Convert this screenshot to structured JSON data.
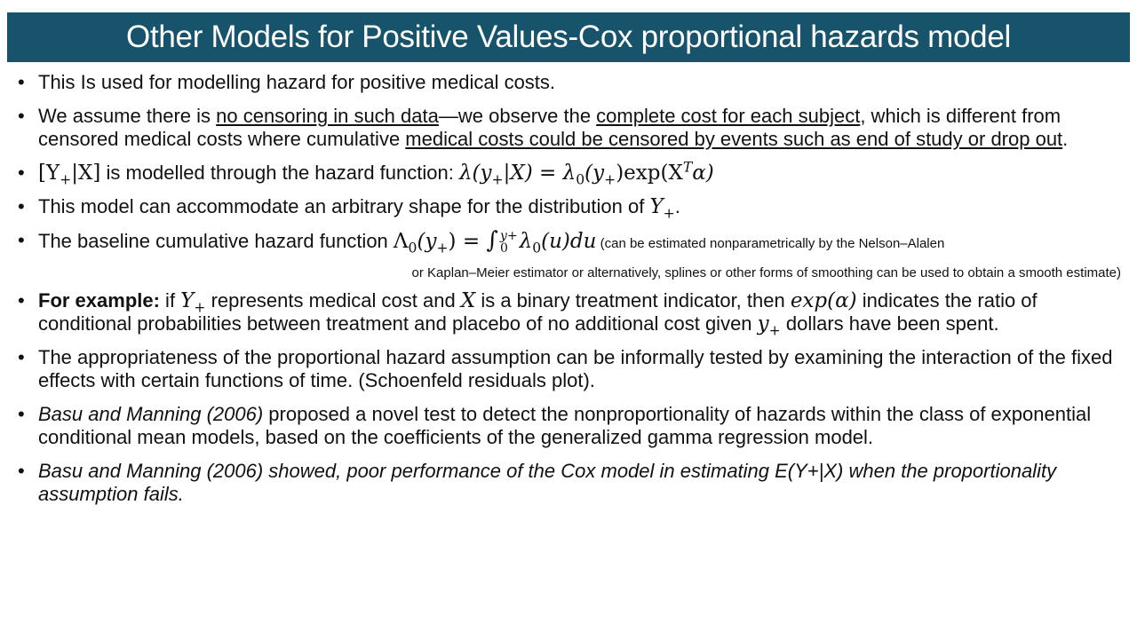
{
  "title": "Other Models for Positive Values-Cox proportional hazards model",
  "b1": "This Is used for modelling hazard for positive medical costs.",
  "b2": {
    "t1": "We assume there is ",
    "u1": "no censoring in such data",
    "t2": "—we observe the ",
    "u2": "complete cost for each subject",
    "t3": ", which is different from censored medical costs where cumulative ",
    "u3": "medical costs could be censored by events such as end of study or drop out",
    "t4": "."
  },
  "b3": {
    "m1": "[Y",
    "m1s": "+",
    "m2": "|X]",
    "t1": " is modelled through the hazard function: ",
    "m3": "λ(y",
    "m3s": "+",
    "m4": "|X) = λ",
    "m4s": "0",
    "m5": "(y",
    "m5s": "+",
    "m6": ")exp(X",
    "m6p": "T",
    "m7": "α)"
  },
  "b4": {
    "t1": "This model can accommodate an arbitrary shape for the distribution of ",
    "m1": "Y",
    "m1s": "+",
    "t2": "."
  },
  "b5": {
    "t1": "The baseline cumulative hazard function ",
    "m1": "Λ",
    "m1s": "0",
    "m2": "(y",
    "m2s": "+",
    "m3": ") = ",
    "int": "∫",
    "upper": "y+",
    "lower": "0",
    "m4": "λ",
    "m4s": "0",
    "m5": "(u)du",
    "note1": " (can be estimated nonparametrically by the Nelson–Alalen",
    "note2": "or Kaplan–Meier estimator or alternatively, splines or other forms of smoothing can be used to obtain a smooth estimate)"
  },
  "b6": {
    "bold": "For example:",
    "t1": " if ",
    "m1": "Y",
    "m1s": "+",
    "t2": " represents medical cost and ",
    "m2": "X",
    "t3": " is a binary treatment indicator, then ",
    "m3": "exp(α)",
    "t4": " indicates the ratio of conditional probabilities between treatment and placebo of no additional cost given ",
    "m4": "y",
    "m4s": "+",
    "t5": " dollars have been spent."
  },
  "b7": "The appropriateness of the proportional hazard assumption can be informally tested by examining the interaction of the fixed effects with certain functions of time. (Schoenfeld residuals plot).",
  "b8": {
    "it": "Basu and Manning (2006)",
    "t1": " proposed a novel test to detect the nonproportionality of hazards within the class of exponential conditional mean models, based on the coefficients of the generalized gamma regression model."
  },
  "b9": "Basu and Manning (2006) showed, poor performance of the Cox model in estimating E(Y+|X) when the proportionality assumption fails.",
  "bullet_char": "•"
}
